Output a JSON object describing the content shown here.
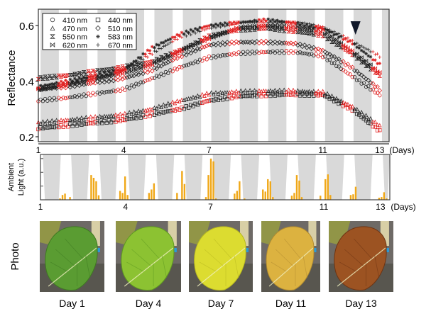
{
  "chart_data": [
    {
      "type": "scatter",
      "ylabel": "Reflectance",
      "xlabel_unit": "(Days)",
      "xticks": [
        1,
        4,
        7,
        11,
        13
      ],
      "yticks": [
        0.2,
        0.4,
        0.6
      ],
      "xlim": [
        1,
        13.33
      ],
      "ylim": [
        0.18,
        0.665
      ],
      "grid": false,
      "legend_placement": "top-left",
      "shaded_intervals_days": [
        [
          1.08,
          1.72
        ],
        [
          2.08,
          2.72
        ],
        [
          3.08,
          3.72
        ],
        [
          4.08,
          4.72
        ],
        [
          5.08,
          5.72
        ],
        [
          6.08,
          6.72
        ],
        [
          7.08,
          7.72
        ],
        [
          8.08,
          8.72
        ],
        [
          9.08,
          9.72
        ],
        [
          10.08,
          10.72
        ],
        [
          11.08,
          11.72
        ],
        [
          12.08,
          12.72
        ],
        [
          13.08,
          13.33
        ]
      ],
      "shaded_color": "#d9d9d9",
      "marker_colors": {
        "shaded": "#222222",
        "unshaded": "#e02020"
      },
      "annotation": {
        "type": "arrowhead-down",
        "day": 12.15,
        "color": "#10182a"
      },
      "x_days": [
        1,
        2,
        3,
        4,
        5,
        6,
        7,
        8,
        9,
        10,
        11,
        12,
        13
      ],
      "series": [
        {
          "name": "410 nm",
          "marker": "circle",
          "values": [
            0.33,
            0.34,
            0.355,
            0.37,
            0.41,
            0.45,
            0.485,
            0.5,
            0.505,
            0.505,
            0.49,
            0.42,
            0.35
          ]
        },
        {
          "name": "440 nm",
          "marker": "square",
          "values": [
            0.23,
            0.24,
            0.25,
            0.26,
            0.28,
            0.3,
            0.33,
            0.345,
            0.35,
            0.352,
            0.35,
            0.3,
            0.22
          ]
        },
        {
          "name": "470 nm",
          "marker": "triangle",
          "values": [
            0.25,
            0.26,
            0.27,
            0.28,
            0.3,
            0.33,
            0.355,
            0.362,
            0.365,
            0.365,
            0.36,
            0.31,
            0.24
          ]
        },
        {
          "name": "510 nm",
          "marker": "diamond",
          "values": [
            0.37,
            0.38,
            0.395,
            0.41,
            0.44,
            0.49,
            0.53,
            0.54,
            0.54,
            0.535,
            0.51,
            0.45,
            0.37
          ]
        },
        {
          "name": "550 nm",
          "marker": "hourglass",
          "values": [
            0.41,
            0.42,
            0.435,
            0.45,
            0.47,
            0.51,
            0.56,
            0.585,
            0.59,
            0.58,
            0.565,
            0.5,
            0.42
          ]
        },
        {
          "name": "583 nm",
          "marker": "asterisk",
          "values": [
            0.38,
            0.4,
            0.42,
            0.44,
            0.52,
            0.57,
            0.6,
            0.61,
            0.62,
            0.61,
            0.59,
            0.54,
            0.46
          ]
        },
        {
          "name": "620 nm",
          "marker": "bowtie",
          "values": [
            0.37,
            0.39,
            0.41,
            0.43,
            0.46,
            0.51,
            0.555,
            0.59,
            0.6,
            0.595,
            0.58,
            0.51,
            0.43
          ]
        },
        {
          "name": "670 nm",
          "marker": "plus",
          "values": [
            0.37,
            0.385,
            0.41,
            0.44,
            0.5,
            0.56,
            0.59,
            0.61,
            0.615,
            0.61,
            0.595,
            0.545,
            0.49
          ]
        }
      ]
    },
    {
      "type": "bar",
      "ylabel_line1": "Ambient",
      "ylabel_line2": "Light (a.u.)",
      "xlabel_unit": "(Days)",
      "xticks": [
        1,
        4,
        7,
        11,
        13
      ],
      "xlim": [
        1,
        13.33
      ],
      "ylim": [
        0,
        3.3
      ],
      "yticks_unlabeled": [
        1,
        2,
        3
      ],
      "bar_color": "#f0a818",
      "shaded_intervals_days": [
        [
          1.08,
          1.72
        ],
        [
          2.08,
          2.72
        ],
        [
          3.08,
          3.72
        ],
        [
          4.08,
          4.72
        ],
        [
          5.08,
          5.72
        ],
        [
          6.08,
          6.72
        ],
        [
          7.08,
          7.72
        ],
        [
          8.08,
          8.72
        ],
        [
          9.08,
          9.72
        ],
        [
          10.08,
          10.72
        ],
        [
          11.08,
          11.72
        ],
        [
          12.08,
          12.72
        ],
        [
          13.08,
          13.33
        ]
      ],
      "clusters": [
        {
          "start_day": 1.69,
          "values": [
            0.1,
            0.35,
            0.45,
            0,
            0.2
          ]
        },
        {
          "start_day": 2.79,
          "values": [
            1.8,
            1.6,
            1.35,
            0.33
          ]
        },
        {
          "start_day": 3.81,
          "values": [
            0.65,
            0.5,
            1.7,
            0.35
          ]
        },
        {
          "start_day": 4.83,
          "values": [
            0.5,
            0.75,
            1.2
          ]
        },
        {
          "start_day": 5.82,
          "values": [
            0.5,
            0,
            2.1,
            1.15
          ]
        },
        {
          "start_day": 6.84,
          "values": [
            0.2,
            1.8,
            3.0,
            2.8,
            0.1
          ]
        },
        {
          "start_day": 7.85,
          "values": [
            0.45,
            0.65,
            1.35,
            0,
            0.1
          ]
        },
        {
          "start_day": 8.85,
          "values": [
            0.75,
            0.6,
            1.5,
            1.35,
            0.2
          ]
        },
        {
          "start_day": 9.87,
          "values": [
            0.3,
            0.5,
            1.8,
            1.4,
            0.2
          ]
        },
        {
          "start_day": 10.88,
          "values": [
            0.3,
            0,
            1.5,
            1.85,
            0.35
          ]
        },
        {
          "start_day": 11.95,
          "values": [
            0.35,
            0.4,
            0.95
          ]
        },
        {
          "start_day": 12.95,
          "values": [
            0.15,
            0.2,
            0.55,
            0.1
          ]
        }
      ]
    }
  ],
  "photos": {
    "row_label": "Photo",
    "items": [
      {
        "label": "Day 1",
        "leaf_color": "#5a9c32",
        "leaf_edge": "#3f7a22"
      },
      {
        "label": "Day 4",
        "leaf_color": "#8cc232",
        "leaf_edge": "#5f9a20"
      },
      {
        "label": "Day 7",
        "leaf_color": "#dcdc30",
        "leaf_edge": "#b8b820"
      },
      {
        "label": "Day 11",
        "leaf_color": "#dcb240",
        "leaf_edge": "#b08a30"
      },
      {
        "label": "Day 13",
        "leaf_color": "#9c5322",
        "leaf_edge": "#6e3514"
      }
    ]
  }
}
